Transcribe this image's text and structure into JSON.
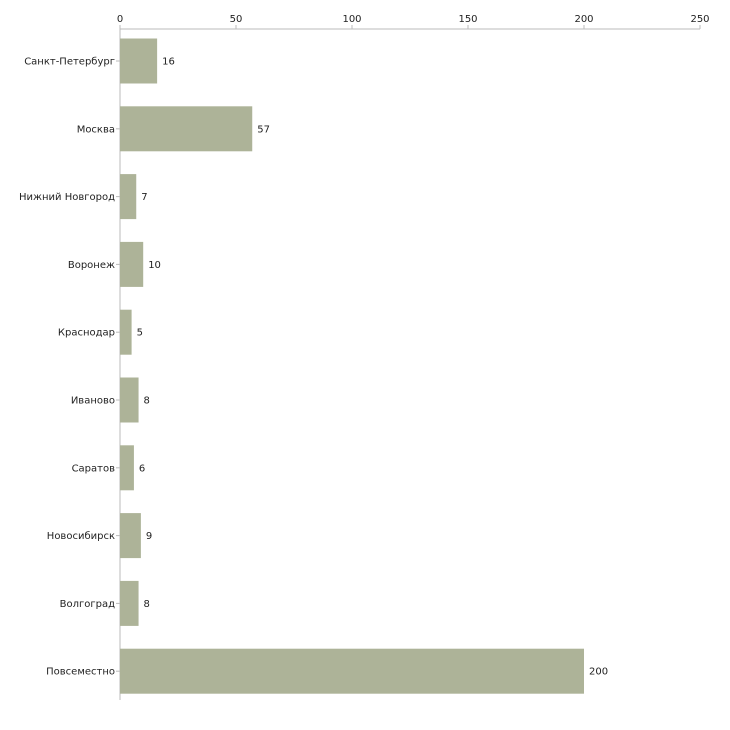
{
  "chart_data": {
    "type": "bar",
    "orientation": "horizontal",
    "title": "",
    "xlabel": "",
    "ylabel": "",
    "xlim": [
      0,
      250
    ],
    "ticks": [
      0,
      50,
      100,
      150,
      200,
      250
    ],
    "tick_labels": [
      "0",
      "50",
      "100",
      "150",
      "200",
      "250"
    ],
    "axis_position": "top",
    "grid": false,
    "categories": [
      "Санкт-Петербург",
      "Москва",
      "Нижний Новгород",
      "Воронеж",
      "Краснодар",
      "Иваново",
      "Саратов",
      "Новосибирск",
      "Волгоград",
      "Повсеместно"
    ],
    "values": [
      16,
      57,
      7,
      10,
      5,
      8,
      6,
      9,
      8,
      200
    ],
    "value_labels": [
      "16",
      "57",
      "7",
      "10",
      "5",
      "8",
      "6",
      "9",
      "8",
      "200"
    ],
    "bar_color": "#adb398",
    "axis_color": "#bbbbbb"
  }
}
